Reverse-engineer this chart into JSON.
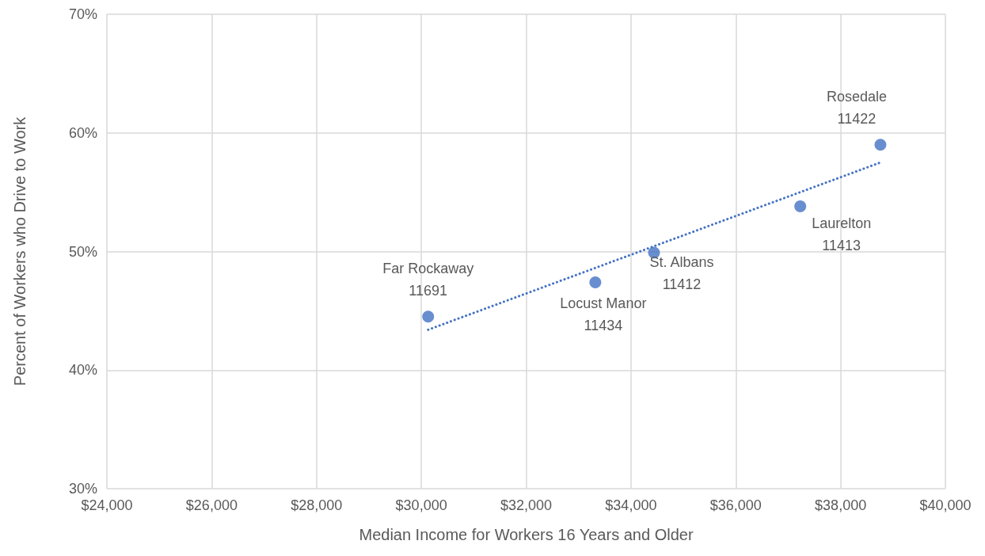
{
  "chart_data": {
    "type": "scatter",
    "xlabel": "Median Income for Workers 16 Years and Older",
    "ylabel": "Percent of Workers who Drive to Work",
    "series": [
      {
        "type": "scatter",
        "color": "#4472c4",
        "marker": "circle",
        "x": [
          30130,
          33320,
          34440,
          37230,
          38760
        ],
        "values": [
          44.5,
          47.4,
          49.9,
          53.8,
          59.0
        ]
      },
      {
        "type": "line",
        "color": "#4472c4",
        "marker": "none",
        "line_style": "dotted",
        "x": [
          30130,
          38760
        ],
        "values": [
          43.4,
          57.5
        ]
      }
    ],
    "annotations": [
      {
        "text": "Far Rockaway\n11691",
        "x": 30130,
        "y": 44.5
      },
      {
        "text": "Locust Manor\n11434",
        "x": 33320,
        "y": 47.4
      },
      {
        "text": "St. Albans\n11412",
        "x": 34440,
        "y": 49.9
      },
      {
        "text": "Laurelton\n11413",
        "x": 37230,
        "y": 53.8
      },
      {
        "text": "Rosedale\n11422",
        "x": 38760,
        "y": 59.0
      }
    ],
    "xlim": [
      24000,
      40000
    ],
    "xticks": [
      {
        "value": 24000,
        "label": "$24,000"
      },
      {
        "value": 26000,
        "label": "$26,000"
      },
      {
        "value": 28000,
        "label": "$28,000"
      },
      {
        "value": 30000,
        "label": "$30,000"
      },
      {
        "value": 32000,
        "label": "$32,000"
      },
      {
        "value": 34000,
        "label": "$34,000"
      },
      {
        "value": 36000,
        "label": "$36,000"
      },
      {
        "value": 38000,
        "label": "$38,000"
      },
      {
        "value": 40000,
        "label": "$40,000"
      }
    ],
    "ylim": [
      30,
      70
    ],
    "yticks": [
      {
        "value": 30,
        "label": "30%"
      },
      {
        "value": 40,
        "label": "40%"
      },
      {
        "value": 50,
        "label": "50%"
      },
      {
        "value": 60,
        "label": "60%"
      },
      {
        "value": 70,
        "label": "70%"
      }
    ],
    "grid": true
  }
}
